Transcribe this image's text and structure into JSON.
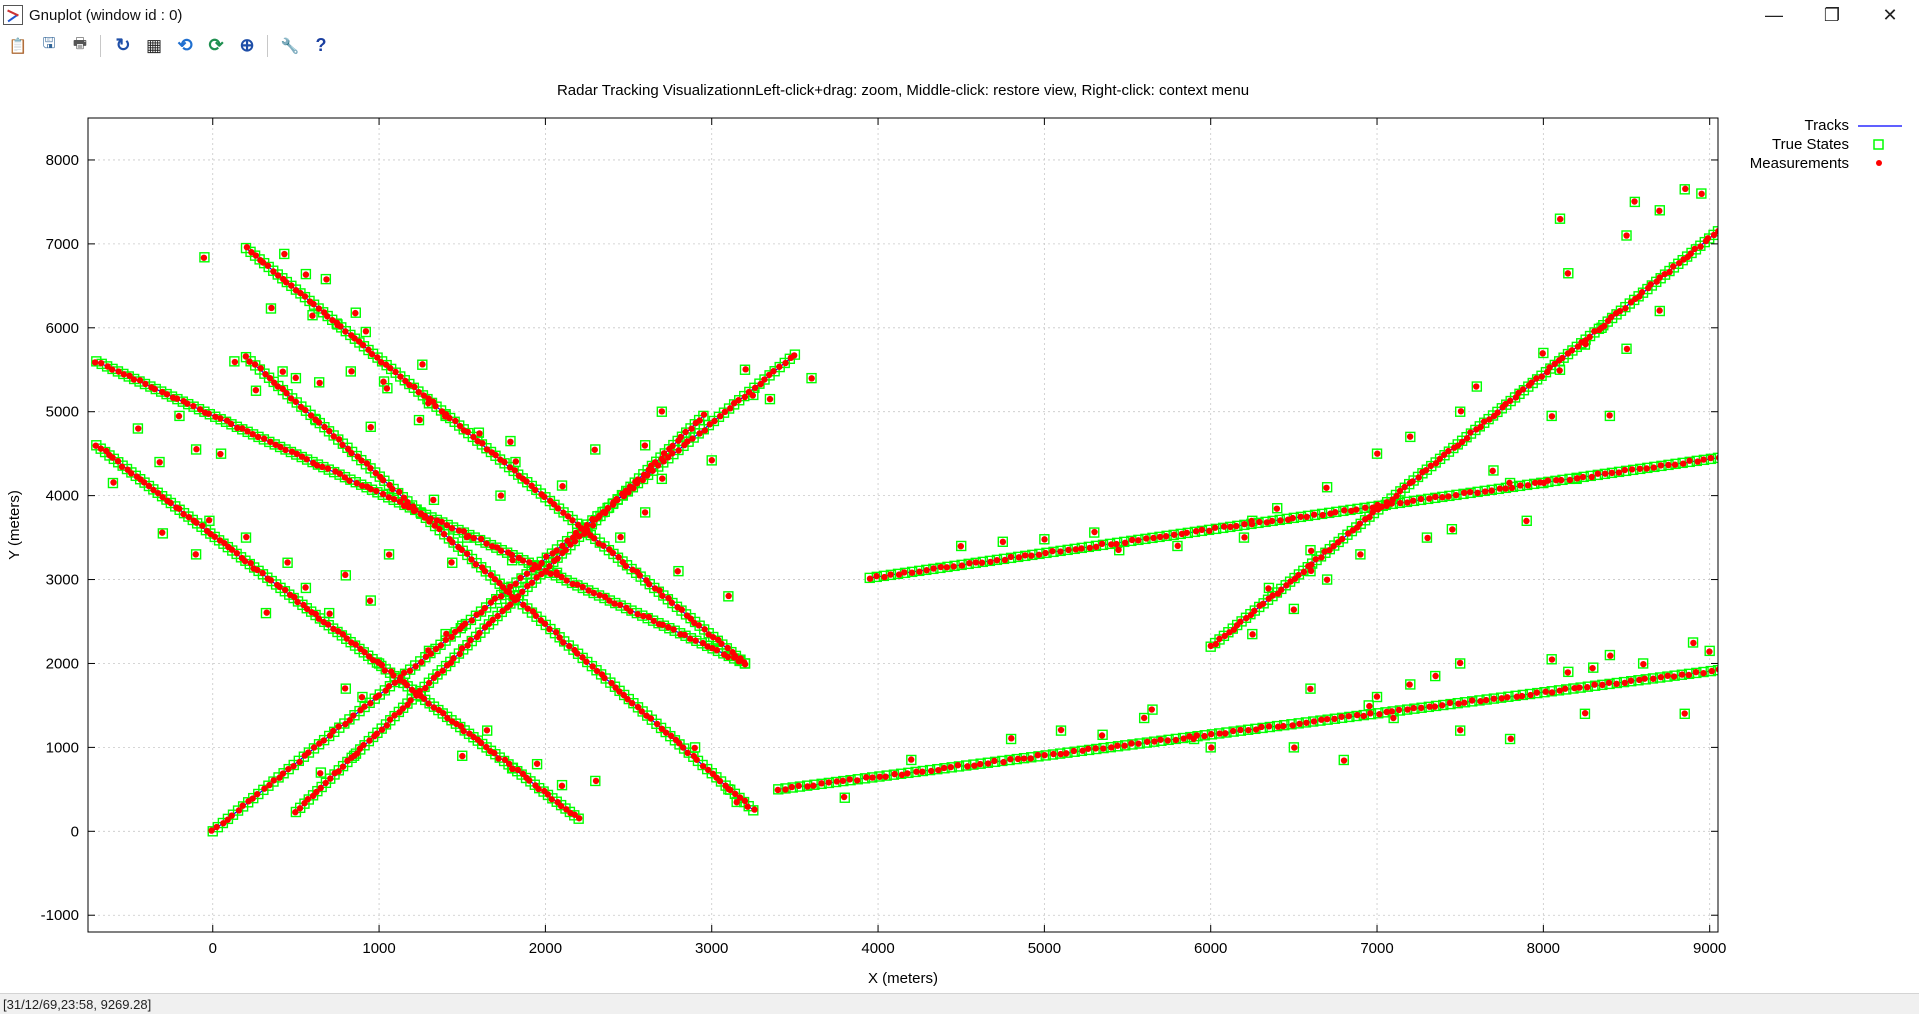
{
  "window": {
    "title": "Gnuplot (window id : 0)",
    "minimize_label": "—",
    "restore_label": "❐",
    "close_label": "✕"
  },
  "toolbar": {
    "buttons": [
      {
        "name": "copy-clipboard",
        "icon": "clipboard-icon",
        "glyph": "📋"
      },
      {
        "name": "export",
        "icon": "export-icon",
        "glyph": "🖫"
      },
      {
        "name": "print",
        "icon": "printer-icon",
        "glyph": "🖶"
      },
      {
        "name": "replot",
        "icon": "refresh-icon",
        "glyph": "↻"
      },
      {
        "name": "grid",
        "icon": "grid-icon",
        "glyph": "▦"
      },
      {
        "name": "zoom-previous",
        "icon": "zoom-previous-icon",
        "glyph": "⟲"
      },
      {
        "name": "zoom-next",
        "icon": "zoom-next-icon",
        "glyph": "⟳"
      },
      {
        "name": "autoscale",
        "icon": "zoom-fit-icon",
        "glyph": "⊕"
      },
      {
        "name": "options",
        "icon": "wrench-icon",
        "glyph": "🔧"
      },
      {
        "name": "help",
        "icon": "help-icon",
        "glyph": "?"
      }
    ]
  },
  "statusbar": {
    "coords": "[31/12/69,23:58,  9269.28]"
  },
  "chart_data": {
    "type": "scatter",
    "title": "Radar Tracking VisualizationnLeft-click+drag: zoom, Middle-click: restore view, Right-click: context menu",
    "xlabel": "X (meters)",
    "ylabel": "Y (meters)",
    "xlim": [
      -750,
      9050
    ],
    "ylim": [
      -1200,
      8500
    ],
    "xticks": [
      0,
      1000,
      2000,
      3000,
      4000,
      5000,
      6000,
      7000,
      8000,
      9000
    ],
    "yticks": [
      -1000,
      0,
      1000,
      2000,
      3000,
      4000,
      5000,
      6000,
      7000,
      8000
    ],
    "grid": true,
    "legend_position": "top-right-outside",
    "legend": [
      {
        "label": "Tracks",
        "style": "line",
        "color": "#0000ff"
      },
      {
        "label": "True States",
        "style": "hollow-square",
        "color": "#00ff00"
      },
      {
        "label": "Measurements",
        "style": "dot",
        "color": "#ff0000"
      }
    ],
    "tracks": [
      {
        "start": [
          -700,
          5600
        ],
        "end": [
          3200,
          2000
        ],
        "n": 120
      },
      {
        "start": [
          -700,
          4600
        ],
        "end": [
          2200,
          150
        ],
        "n": 110
      },
      {
        "start": [
          200,
          6950
        ],
        "end": [
          3200,
          2000
        ],
        "n": 110
      },
      {
        "start": [
          200,
          5650
        ],
        "end": [
          3250,
          250
        ],
        "n": 110
      },
      {
        "start": [
          0,
          0
        ],
        "end": [
          3500,
          5680
        ],
        "n": 115
      },
      {
        "start": [
          500,
          230
        ],
        "end": [
          2950,
          4950
        ],
        "n": 95
      },
      {
        "start": [
          3400,
          500
        ],
        "end": [
          9050,
          1920
        ],
        "n": 130
      },
      {
        "start": [
          3950,
          3020
        ],
        "end": [
          9050,
          4450
        ],
        "n": 120
      },
      {
        "start": [
          6000,
          2200
        ],
        "end": [
          9050,
          7150
        ],
        "n": 115
      }
    ],
    "outliers": [
      [
        -50,
        6840
      ],
      [
        430,
        6880
      ],
      [
        560,
        6640
      ],
      [
        680,
        6580
      ],
      [
        860,
        6180
      ],
      [
        350,
        6230
      ],
      [
        600,
        6150
      ],
      [
        750,
        6040
      ],
      [
        920,
        5950
      ],
      [
        130,
        5600
      ],
      [
        420,
        5480
      ],
      [
        500,
        5400
      ],
      [
        260,
        5250
      ],
      [
        640,
        5350
      ],
      [
        830,
        5480
      ],
      [
        1260,
        5560
      ],
      [
        1030,
        5360
      ],
      [
        1050,
        5280
      ],
      [
        1300,
        5100
      ],
      [
        1400,
        4950
      ],
      [
        620,
        4900
      ],
      [
        950,
        4820
      ],
      [
        1240,
        4900
      ],
      [
        1600,
        4750
      ],
      [
        1790,
        4650
      ],
      [
        1820,
        4400
      ],
      [
        2100,
        4120
      ],
      [
        2300,
        4550
      ],
      [
        1730,
        4000
      ],
      [
        1330,
        3950
      ],
      [
        1530,
        3500
      ],
      [
        1800,
        3230
      ],
      [
        2070,
        3080
      ],
      [
        1440,
        3200
      ],
      [
        1060,
        3300
      ],
      [
        800,
        3050
      ],
      [
        700,
        2600
      ],
      [
        560,
        2900
      ],
      [
        950,
        2750
      ],
      [
        320,
        2600
      ],
      [
        450,
        3200
      ],
      [
        200,
        3500
      ],
      [
        -320,
        4400
      ],
      [
        -200,
        4950
      ],
      [
        -450,
        4800
      ],
      [
        -800,
        4450
      ],
      [
        -600,
        4150
      ],
      [
        -100,
        4550
      ],
      [
        50,
        4500
      ],
      [
        -20,
        3700
      ],
      [
        -300,
        3550
      ],
      [
        -100,
        3300
      ],
      [
        2700,
        5000
      ],
      [
        2600,
        4600
      ],
      [
        2700,
        4200
      ],
      [
        3000,
        4420
      ],
      [
        3200,
        5500
      ],
      [
        3250,
        5200
      ],
      [
        3600,
        5400
      ],
      [
        3350,
        5150
      ],
      [
        2600,
        3800
      ],
      [
        2800,
        3100
      ],
      [
        3100,
        2800
      ],
      [
        2250,
        3600
      ],
      [
        2450,
        3500
      ],
      [
        1400,
        2350
      ],
      [
        1500,
        2450
      ],
      [
        1300,
        2150
      ],
      [
        1000,
        2000
      ],
      [
        800,
        1700
      ],
      [
        900,
        1600
      ],
      [
        1500,
        900
      ],
      [
        1800,
        750
      ],
      [
        1650,
        1200
      ],
      [
        1950,
        800
      ],
      [
        2100,
        550
      ],
      [
        2300,
        600
      ],
      [
        2900,
        1000
      ],
      [
        3100,
        500
      ],
      [
        3150,
        350
      ],
      [
        650,
        700
      ],
      [
        850,
        900
      ],
      [
        3800,
        400
      ],
      [
        4200,
        850
      ],
      [
        4500,
        3400
      ],
      [
        4750,
        3450
      ],
      [
        5000,
        3480
      ],
      [
        5300,
        3560
      ],
      [
        5450,
        3350
      ],
      [
        5800,
        3400
      ],
      [
        6200,
        3500
      ],
      [
        6250,
        3700
      ],
      [
        6400,
        3850
      ],
      [
        6600,
        3100
      ],
      [
        6700,
        4100
      ],
      [
        7000,
        4500
      ],
      [
        7200,
        4700
      ],
      [
        7500,
        5000
      ],
      [
        7600,
        5300
      ],
      [
        7700,
        4300
      ],
      [
        7800,
        4150
      ],
      [
        7900,
        3700
      ],
      [
        8000,
        5700
      ],
      [
        8100,
        5500
      ],
      [
        8150,
        6650
      ],
      [
        8100,
        7300
      ],
      [
        8250,
        5800
      ],
      [
        8350,
        6000
      ],
      [
        8500,
        7100
      ],
      [
        8550,
        7500
      ],
      [
        8700,
        7400
      ],
      [
        8850,
        7650
      ],
      [
        8950,
        7600
      ],
      [
        8700,
        6200
      ],
      [
        8500,
        5750
      ],
      [
        8400,
        4950
      ],
      [
        8200,
        4200
      ],
      [
        8000,
        4150
      ],
      [
        8050,
        4950
      ],
      [
        7450,
        3600
      ],
      [
        7300,
        3500
      ],
      [
        6900,
        3300
      ],
      [
        6700,
        3000
      ],
      [
        6500,
        2650
      ],
      [
        6250,
        2350
      ],
      [
        6350,
        2900
      ],
      [
        6600,
        3350
      ],
      [
        4800,
        1100
      ],
      [
        5100,
        1200
      ],
      [
        5350,
        1150
      ],
      [
        5650,
        1450
      ],
      [
        6000,
        1000
      ],
      [
        6500,
        1000
      ],
      [
        6800,
        850
      ],
      [
        6950,
        1500
      ],
      [
        7100,
        1350
      ],
      [
        7200,
        1750
      ],
      [
        7350,
        1850
      ],
      [
        7500,
        2000
      ],
      [
        7500,
        1200
      ],
      [
        7800,
        1100
      ],
      [
        8050,
        2050
      ],
      [
        8150,
        1900
      ],
      [
        8300,
        1950
      ],
      [
        8400,
        2100
      ],
      [
        8600,
        2000
      ],
      [
        8900,
        2250
      ],
      [
        9000,
        2150
      ],
      [
        8850,
        1400
      ],
      [
        8250,
        1400
      ],
      [
        7000,
        1600
      ],
      [
        6600,
        1700
      ],
      [
        5900,
        1100
      ],
      [
        5600,
        1350
      ]
    ]
  }
}
